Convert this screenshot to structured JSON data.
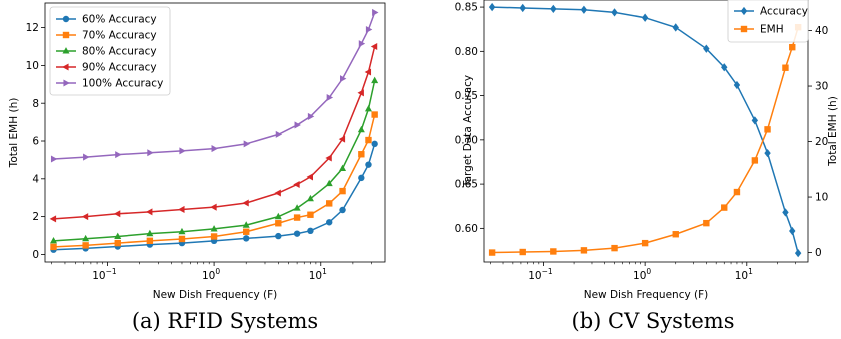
{
  "chart_data": [
    {
      "type": "line",
      "caption": "(a) RFID Systems",
      "xlabel": "New Dish Frequency (F)",
      "ylabel": "Total EMH (h)",
      "xscale": "log",
      "xlim": [
        0.026,
        40
      ],
      "ylim": [
        -0.4,
        13.3
      ],
      "x_ticks": [
        {
          "v": 0.1,
          "base": "10",
          "exp": "−1"
        },
        {
          "v": 1,
          "base": "10",
          "exp": "0"
        },
        {
          "v": 10,
          "base": "10",
          "exp": "1"
        }
      ],
      "y_ticks": [
        0,
        2,
        4,
        6,
        8,
        10,
        12
      ],
      "legend_position": "top-left",
      "x": [
        0.03125,
        0.0625,
        0.125,
        0.25,
        0.5,
        1,
        2,
        4,
        6,
        8,
        12,
        16,
        24,
        28,
        32
      ],
      "series": [
        {
          "name": "60% Accuracy",
          "color": "#1f77b4",
          "marker": "circle",
          "values": [
            0.25,
            0.32,
            0.42,
            0.52,
            0.6,
            0.72,
            0.85,
            0.97,
            1.1,
            1.25,
            1.7,
            2.35,
            4.05,
            4.75,
            5.85
          ]
        },
        {
          "name": "70% Accuracy",
          "color": "#ff7f0e",
          "marker": "square",
          "values": [
            0.4,
            0.48,
            0.6,
            0.72,
            0.82,
            0.95,
            1.2,
            1.65,
            1.95,
            2.1,
            2.7,
            3.35,
            5.3,
            6.05,
            7.4
          ]
        },
        {
          "name": "80% Accuracy",
          "color": "#2ca02c",
          "marker": "triangle-up",
          "values": [
            0.72,
            0.83,
            0.95,
            1.1,
            1.2,
            1.35,
            1.55,
            2.0,
            2.45,
            2.95,
            3.75,
            4.55,
            6.6,
            7.7,
            9.2
          ]
        },
        {
          "name": "90% Accuracy",
          "color": "#d62728",
          "marker": "triangle-left",
          "values": [
            1.88,
            2.0,
            2.15,
            2.25,
            2.38,
            2.5,
            2.72,
            3.25,
            3.7,
            4.1,
            5.1,
            6.1,
            8.55,
            9.65,
            11.0
          ]
        },
        {
          "name": "100% Accuracy",
          "color": "#9467bd",
          "marker": "triangle-right",
          "values": [
            5.05,
            5.15,
            5.28,
            5.38,
            5.48,
            5.6,
            5.85,
            6.35,
            6.85,
            7.3,
            8.3,
            9.3,
            11.15,
            11.9,
            12.8
          ]
        }
      ]
    },
    {
      "type": "line",
      "caption": "(b) CV Systems",
      "xlabel": "New Dish Frequency (F)",
      "ylabel": "Target Data Accuracy",
      "y2label": "Total EMH (h)",
      "xscale": "log",
      "xlim": [
        0.026,
        40
      ],
      "ylim": [
        0.562,
        0.858
      ],
      "y2lim": [
        -1.7,
        45.5
      ],
      "x_ticks": [
        {
          "v": 0.1,
          "base": "10",
          "exp": "−1"
        },
        {
          "v": 1,
          "base": "10",
          "exp": "0"
        },
        {
          "v": 10,
          "base": "10",
          "exp": "1"
        }
      ],
      "y_ticks": [
        "0.60",
        "0.65",
        "0.70",
        "0.75",
        "0.80",
        "0.85"
      ],
      "y2_ticks": [
        0,
        10,
        20,
        30,
        40
      ],
      "legend_position": "top-right",
      "x": [
        0.03125,
        0.0625,
        0.125,
        0.25,
        0.5,
        1,
        2,
        4,
        6,
        8,
        12,
        16,
        24,
        28,
        32
      ],
      "series": [
        {
          "name": "Accuracy",
          "color": "#1f77b4",
          "marker": "diamond",
          "axis": "left",
          "values": [
            0.85,
            0.849,
            0.848,
            0.847,
            0.844,
            0.838,
            0.827,
            0.803,
            0.782,
            0.762,
            0.722,
            0.685,
            0.618,
            0.597,
            0.572
          ]
        },
        {
          "name": "EMH",
          "color": "#ff7f0e",
          "marker": "square",
          "axis": "right",
          "values": [
            0.0,
            0.1,
            0.2,
            0.4,
            0.8,
            1.7,
            3.3,
            5.3,
            8.1,
            10.9,
            16.6,
            22.2,
            33.3,
            37.0,
            40.6
          ]
        }
      ]
    }
  ]
}
